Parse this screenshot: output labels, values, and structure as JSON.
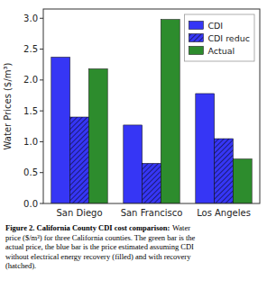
{
  "chart_data": {
    "type": "bar",
    "categories": [
      "San Diego",
      "San Francisco",
      "Los Angeles"
    ],
    "series": [
      {
        "name": "CDI",
        "color": "#3636f5",
        "values": [
          2.37,
          1.27,
          1.78
        ]
      },
      {
        "name": "CDI reduc",
        "color": "#3636f5",
        "line_style": "hatched",
        "values": [
          1.4,
          0.65,
          1.05
        ]
      },
      {
        "name": "Actual",
        "color": "#2d8c2d",
        "values": [
          2.18,
          2.98,
          0.72
        ]
      }
    ],
    "ylabel": "Water Prices ($/m³)",
    "ylim": [
      0,
      3.15
    ],
    "yticks": [
      {
        "value": 0,
        "label": "0.0"
      },
      0.5,
      {
        "value": 1,
        "label": "1.0"
      },
      1.5,
      {
        "value": 2,
        "label": "2.0"
      },
      2.5,
      {
        "value": 3,
        "label": "3.0"
      }
    ],
    "grid": false,
    "legend": "upper right",
    "annotations": [
      "Figure 2. California County CDI cost comparison:",
      "Water\nprice ($/m³) for three California counties. The green bar is the\nactual price, the blue bar is the price estimated assuming CDI\nwithout electrical energy recovery (filled) and with recovery\n(hatched)."
    ]
  }
}
